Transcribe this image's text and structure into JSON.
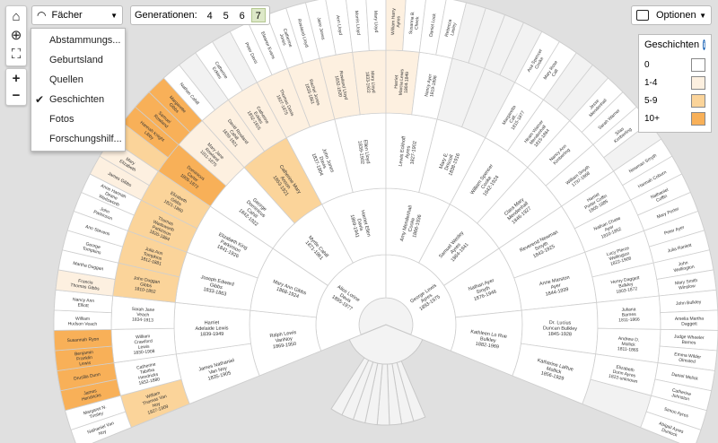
{
  "toolbar": {
    "view_select": "Fächer",
    "view_menu": [
      "Abstammungs...",
      "Geburtsland",
      "Quellen",
      "Geschichten",
      "Fotos",
      "Forschungshilf..."
    ],
    "view_menu_selected_index": 3,
    "generations_label": "Generationen:",
    "generation_options": [
      "4",
      "5",
      "6",
      "7"
    ],
    "generation_selected": "7",
    "options_label": "Optionen",
    "tools": [
      "home-icon",
      "locate-icon",
      "fullscreen-icon",
      "zoom-in-icon",
      "zoom-out-icon"
    ],
    "zoom_in": "+",
    "zoom_out": "−"
  },
  "legend": {
    "title": "Geschichten",
    "info": "i",
    "rows": [
      {
        "label": "0",
        "color": "#ffffff"
      },
      {
        "label": "1-4",
        "color": "#fdf0e0"
      },
      {
        "label": "5-9",
        "color": "#fbd49a"
      },
      {
        "label": "10+",
        "color": "#f8b058"
      }
    ]
  },
  "fan": {
    "gen1": {
      "left": [
        {
          "t": "Alice Lorine Davis",
          "d": "1895-1977",
          "c": 0
        }
      ],
      "right": [
        {
          "t": "George Lewis Ayres",
          "d": "1893-1975",
          "c": 0
        }
      ]
    },
    "gen2": {
      "left": [
        {
          "t": "Ralph Lewis VanNoy",
          "d": "1869-1950",
          "c": 0
        },
        {
          "t": "Mary Ann Gibbs",
          "d": "1868-1924",
          "c": 0
        },
        {
          "t": "Myrtle Cahill",
          "d": "1871-1961",
          "c": 0
        },
        {
          "t": "Harriet Ellen Davis",
          "d": "1869-1941",
          "c": 0
        }
      ],
      "right": [
        {
          "t": "Amy Mendenhall Cooke",
          "d": "1866-1936",
          "c": 0
        },
        {
          "t": "Samuel Wesley Ayres",
          "d": "1864-1941",
          "c": 0
        },
        {
          "t": "Nathan Ayer Smyth",
          "d": "1876-1946",
          "c": 0
        },
        {
          "t": "Kathleen Lo Rue Bulkley",
          "d": "1882-1969",
          "c": 0
        }
      ]
    },
    "gen3": {
      "left": [
        {
          "t": "James Nathaniel Van Noy",
          "d": "1835-1905",
          "c": 0
        },
        {
          "t": "Harriet Adelaide Lewis",
          "d": "1839-1949",
          "c": 0
        },
        {
          "t": "Joseph Edward Gibbs",
          "d": "1833-1863",
          "c": 0
        },
        {
          "t": "Elizabeth King Parkinson",
          "d": "1841-1926",
          "c": 0
        },
        {
          "t": "George Dominicus Cahill",
          "d": "1842-1922",
          "c": 0
        },
        {
          "t": "Catherine Mary Anson",
          "d": "1853-1921",
          "c": 2
        },
        {
          "t": "John Jones Davis",
          "d": "1837-1904",
          "c": 0
        },
        {
          "t": "Ellen Lloyd",
          "d": "1839-1902",
          "c": 0
        }
      ],
      "right": [
        {
          "t": "Lewis Eckhoff Ayres",
          "d": "1827-1902",
          "c": 0
        },
        {
          "t": "Mary E. Driscoll",
          "d": "1838-1916",
          "c": 0
        },
        {
          "t": "William Spencer Cooke",
          "d": "1842-1924",
          "c": 0
        },
        {
          "t": "Clara Mary Mendenhall",
          "d": "1846-1927",
          "c": 0
        },
        {
          "t": "Reverend Newman Smyth",
          "d": "1843-1925",
          "c": 0
        },
        {
          "t": "Anne Marston Ayer",
          "d": "1844-1939",
          "c": 0
        },
        {
          "t": "Dr. Lucius Duncan Bulkley",
          "d": "1845-1928",
          "c": 0
        },
        {
          "t": "Katharine LaRue Mollick",
          "d": "1856-1929",
          "c": 0
        }
      ]
    },
    "gen4": {
      "left": [
        {
          "t": "William Thomas Van Noy",
          "d": "1827-1909",
          "c": 2
        },
        {
          "t": "Catherine Tabitha Hendricks",
          "d": "1832-1880",
          "c": 0
        },
        {
          "t": "William Crawford Lewis",
          "d": "1830-1908",
          "c": 0
        },
        {
          "t": "Sarah Jane Veach",
          "d": "1834-1913",
          "c": 0
        },
        {
          "t": "John Duggan Gibbs",
          "d": "1810-1852",
          "c": 2
        },
        {
          "t": "Julia Ann Tompkins",
          "d": "1812-1881",
          "c": 2
        },
        {
          "t": "Thomas Wadsworth Parkinson",
          "d": "1820-1884",
          "c": 2
        },
        {
          "t": "Elizabeth Gibbs",
          "d": "1821-1860",
          "c": 2
        },
        {
          "t": "Dominicus Carter",
          "d": "1805-1872",
          "c": 3
        },
        {
          "t": "Mary Jane Rowland",
          "d": "1811-1875",
          "c": 1
        },
        {
          "t": "David Rowland Cahill",
          "d": "1839-1921",
          "c": 1
        },
        {
          "t": "Catherine Eckles",
          "d": "1832-1915",
          "c": 1
        },
        {
          "t": "Thomas Davis",
          "d": "1827-1875",
          "c": 1
        },
        {
          "t": "Rachel Jones",
          "d": "1833-1861",
          "c": 1
        },
        {
          "t": "Rowland Lloyd",
          "d": "1832-1920",
          "c": 1
        },
        {
          "t": "Mary Lloyd",
          "d": "1833-1922",
          "c": 1
        }
      ],
      "right": [
        {
          "t": "Harriet Marcia Lewis",
          "d": "1804-1849",
          "c": 1
        },
        {
          "t": "Nancy Ayer",
          "d": "1819-1898",
          "c": 0
        },
        {
          "t": "",
          "d": "",
          "c": 0
        },
        {
          "t": "",
          "d": "",
          "c": 0
        },
        {
          "t": "Margaretta Call...",
          "d": "1815-1877",
          "c": 0
        },
        {
          "t": "Hiram Warner Mendenhall",
          "d": "1815-1864",
          "c": 0
        },
        {
          "t": "Nancy Ann Kimberling",
          "d": "",
          "c": 0
        },
        {
          "t": "William Smyth",
          "d": "1797-1868",
          "c": 0
        },
        {
          "t": "Harriet Porter Coffin",
          "d": "1805-1885",
          "c": 0
        },
        {
          "t": "Nathan Chase Ayer",
          "d": "1810-1852",
          "c": 0
        },
        {
          "t": "Lucy Pierce Wellington",
          "d": "1822-1908",
          "c": 0
        },
        {
          "t": "Henry Daggett Bulkley",
          "d": "1803-1872",
          "c": 0
        },
        {
          "t": "Juliana Barnes",
          "d": "1811-1866",
          "c": 0
        },
        {
          "t": "Andrew D. Mollick",
          "d": "1811-1865",
          "c": 0
        },
        {
          "t": "Elizabeth Dunn Ayres",
          "d": "1822-unknown",
          "c": 0
        },
        {
          "t": "",
          "d": "",
          "c": 0
        }
      ]
    },
    "gen5": {
      "left": [
        {
          "t": "Nathaniel Van Noy",
          "c": 0
        },
        {
          "t": "Margaret N. Tinsley",
          "c": 0
        },
        {
          "t": "James Hendricks",
          "c": 3
        },
        {
          "t": "Drusilla Dunn",
          "c": 3
        },
        {
          "t": "Benjamin Franklin Lewis",
          "c": 3
        },
        {
          "t": "Susannah Ryon",
          "c": 3
        },
        {
          "t": "William Hudson Veach",
          "c": 0
        },
        {
          "t": "Nancy Ann Elliott",
          "c": 0
        },
        {
          "t": "Francis Thomas Gibbs",
          "c": 1
        },
        {
          "t": "Martha Duggan",
          "c": 0
        },
        {
          "t": "George Tompkins",
          "c": 0
        },
        {
          "t": "Ann Stevens",
          "c": 0
        },
        {
          "t": "John Parkinson",
          "c": 0
        },
        {
          "t": "Anne Hannah Deane Wadsworth",
          "c": 0
        },
        {
          "t": "James Gibbs",
          "c": 1
        },
        {
          "t": "Mary Elizabeth",
          "c": 1
        },
        {
          "t": "",
          "c": 2
        },
        {
          "t": "Hannah Knight Libby",
          "c": 3
        },
        {
          "t": "Samuel Rowland",
          "c": 3
        },
        {
          "t": "Margarette Gibbs",
          "c": 3
        },
        {
          "t": "Nathan Cahill",
          "c": 0
        },
        {
          "t": "",
          "c": 0
        },
        {
          "t": "Catherine Eckles",
          "c": 0
        },
        {
          "t": "",
          "c": 0
        },
        {
          "t": "Peter Davis",
          "c": 0
        },
        {
          "t": "Eleanor Evans",
          "c": 0
        },
        {
          "t": "Catherine Jones",
          "c": 0
        },
        {
          "t": "Rowland Lloyd",
          "c": 0
        },
        {
          "t": "Jane Jones",
          "c": 0
        },
        {
          "t": "Ann Lloyd",
          "c": 0
        },
        {
          "t": "Morris Lloyd",
          "c": 0
        },
        {
          "t": "Mary Lloyd",
          "c": 0
        }
      ],
      "right": [
        {
          "t": "William Harry Ayres",
          "c": 1
        },
        {
          "t": "Susanna B. Cheek",
          "c": 0
        },
        {
          "t": "Daniel Lock",
          "c": 0
        },
        {
          "t": "Rebecca Lasley",
          "c": 0
        },
        {
          "t": "",
          "c": 0
        },
        {
          "t": "",
          "c": 0
        },
        {
          "t": "",
          "c": 0
        },
        {
          "t": "",
          "c": 0
        },
        {
          "t": "Asa Spencer Cooke",
          "c": 0
        },
        {
          "t": "Mary Rose Call",
          "c": 0
        },
        {
          "t": "",
          "c": 0
        },
        {
          "t": "",
          "c": 0
        },
        {
          "t": "Jesse Mendenhall",
          "c": 0
        },
        {
          "t": "Sarah Warner",
          "c": 0
        },
        {
          "t": "Silas Kimberling",
          "c": 0
        },
        {
          "t": "",
          "c": 0
        },
        {
          "t": "Newman Smyth",
          "c": 0
        },
        {
          "t": "Hannah Coburn",
          "c": 0
        },
        {
          "t": "Nathaniel Coffin",
          "c": 0
        },
        {
          "t": "Mary Porter",
          "c": 0
        },
        {
          "t": "Peter Ayer",
          "c": 0
        },
        {
          "t": "Julia Ranlett",
          "c": 0
        },
        {
          "t": "John Wellington",
          "c": 0
        },
        {
          "t": "Mary Smith Winslow",
          "c": 0
        },
        {
          "t": "John Bulkley",
          "c": 0
        },
        {
          "t": "Amelia Martha Daggett",
          "c": 0
        },
        {
          "t": "Judge Wheeler Barnes",
          "c": 0
        },
        {
          "t": "Emma Wilder Olmsted",
          "c": 0
        },
        {
          "t": "Daniel Melick",
          "c": 0
        },
        {
          "t": "Catherine Johnston",
          "c": 0
        },
        {
          "t": "Simon Ayres",
          "c": 0
        },
        {
          "t": "Abigail Ayres Dunlock",
          "c": 0
        }
      ]
    }
  }
}
